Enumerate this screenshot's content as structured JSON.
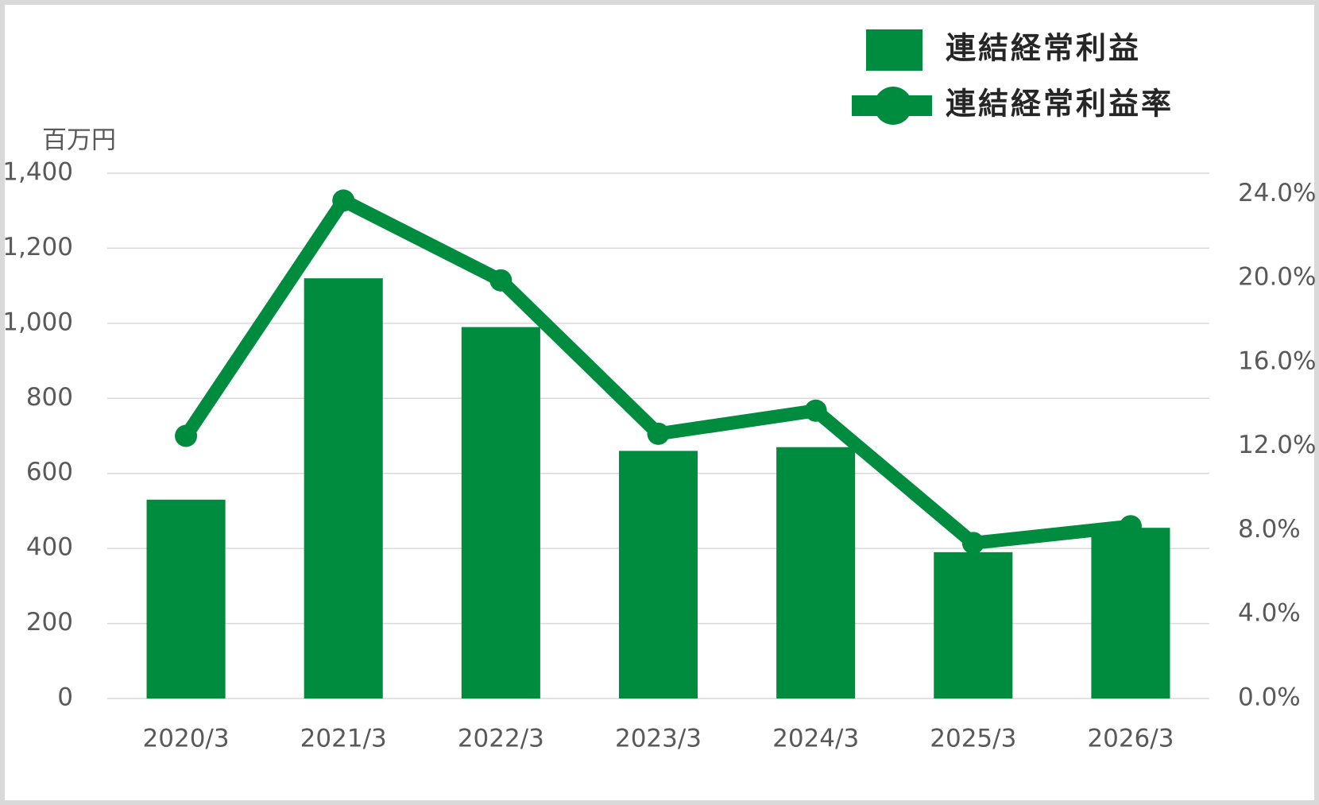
{
  "chart_data": {
    "type": "bar-line",
    "y_label": "百万円",
    "categories": [
      "2020/3",
      "2021/3",
      "2022/3",
      "2023/3",
      "2024/3",
      "2025/3",
      "2026/3"
    ],
    "series": [
      {
        "name": "連結経常利益",
        "type": "bar",
        "color": "#008c3f",
        "values": [
          530,
          1120,
          990,
          660,
          670,
          390,
          455
        ]
      },
      {
        "name": "連結経常利益率",
        "type": "line",
        "axis": "y2",
        "color": "#008c3f",
        "values": [
          12.5,
          23.7,
          19.9,
          12.6,
          13.7,
          7.4,
          8.2
        ]
      }
    ],
    "ylim": [
      0,
      1400
    ],
    "yticks": [
      0,
      200,
      400,
      600,
      800,
      {
        "value": 1000,
        "label": "1,000"
      },
      {
        "value": 1200,
        "label": "1,200"
      },
      {
        "value": 1400,
        "label": "1,400"
      }
    ],
    "y2lim": [
      0,
      25
    ],
    "y2ticks": [
      {
        "value": 0,
        "label": "0.0%"
      },
      {
        "value": 4,
        "label": "4.0%"
      },
      {
        "value": 8,
        "label": "8.0%"
      },
      {
        "value": 12,
        "label": "12.0%"
      },
      {
        "value": 16,
        "label": "16.0%"
      },
      {
        "value": 20,
        "label": "20.0%"
      },
      {
        "value": 24,
        "label": "24.0%"
      }
    ],
    "grid": true,
    "legend": "top-right"
  }
}
